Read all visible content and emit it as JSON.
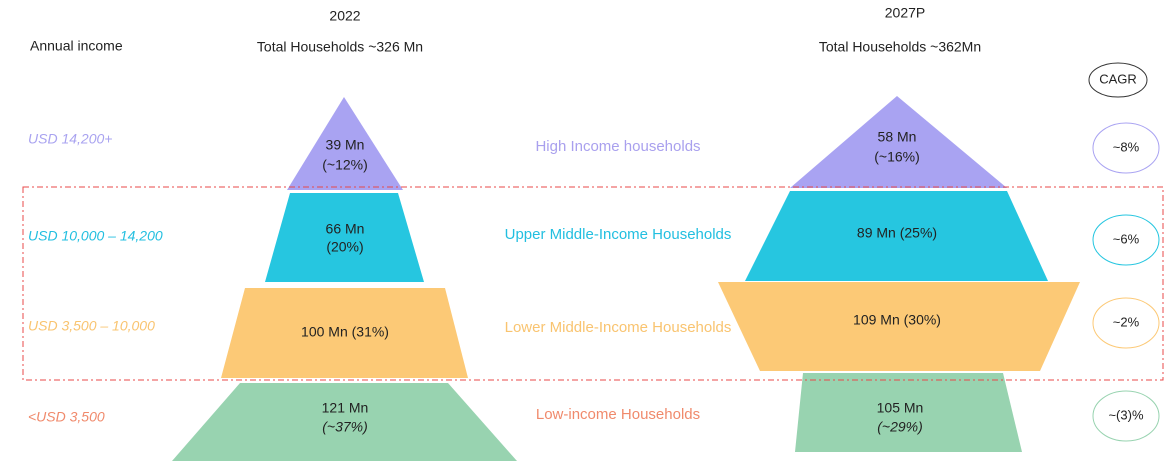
{
  "header": {
    "annual_income": "Annual income",
    "col_2022": {
      "year": "2022",
      "total": "Total Households ~326 Mn"
    },
    "col_2027": {
      "year": "2027P",
      "total": "Total Households ~362Mn"
    },
    "cagr": "CAGR"
  },
  "rows": [
    {
      "income": "USD 14,200+",
      "segment": "High Income households",
      "y2022": [
        "39 Mn",
        "(~12%)"
      ],
      "y2027": [
        "58 Mn",
        "(~16%)"
      ],
      "cagr": "~8%"
    },
    {
      "income": "USD 10,000 – 14,200",
      "segment": "Upper Middle-Income Households",
      "y2022": [
        "66 Mn",
        "(20%)"
      ],
      "y2027": [
        "89 Mn (25%)"
      ],
      "cagr": "~6%"
    },
    {
      "income": "USD 3,500 – 10,000",
      "segment": "Lower Middle-Income Households",
      "y2022": [
        "100 Mn (31%)"
      ],
      "y2027": [
        "109 Mn (30%)"
      ],
      "cagr": "~2%"
    },
    {
      "income": "<USD 3,500",
      "segment": "Low-income Households",
      "y2022": [
        "121 Mn",
        "(~37%)"
      ],
      "y2027": [
        "105 Mn",
        "(~29%)"
      ],
      "cagr": "~(3)%"
    }
  ]
}
